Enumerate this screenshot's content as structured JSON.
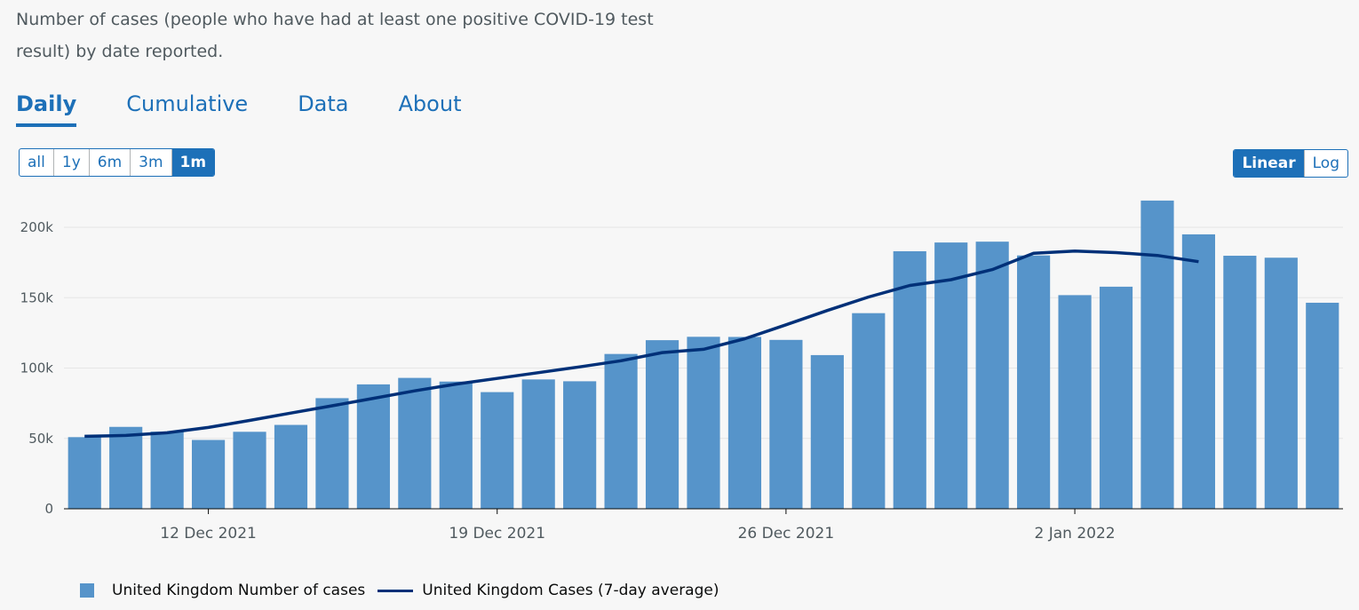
{
  "description": "Number of cases (people who have had at least one positive COVID-19 test result) by date reported.",
  "tabs": [
    {
      "label": "Daily",
      "active": true
    },
    {
      "label": "Cumulative",
      "active": false
    },
    {
      "label": "Data",
      "active": false
    },
    {
      "label": "About",
      "active": false
    }
  ],
  "range_buttons": [
    "all",
    "1y",
    "6m",
    "3m",
    "1m"
  ],
  "range_selected": "1m",
  "scale_buttons": [
    "Linear",
    "Log"
  ],
  "scale_selected": "Linear",
  "colors": {
    "bars": "#5694ca",
    "line": "#003078",
    "accent": "#1d70b8"
  },
  "legend": {
    "bars": "United Kingdom Number of cases",
    "line": "United Kingdom Cases (7-day average)"
  },
  "chart_data": {
    "type": "bar",
    "title": "",
    "xlabel": "",
    "ylabel": "",
    "ylim": [
      0,
      200000
    ],
    "yticks": [
      0,
      50000,
      100000,
      150000,
      200000
    ],
    "ytick_labels": [
      "0",
      "50k",
      "100k",
      "150k",
      "200k"
    ],
    "grid": true,
    "legend_position": "bottom-left",
    "categories": [
      "2021-12-09",
      "2021-12-10",
      "2021-12-11",
      "2021-12-12",
      "2021-12-13",
      "2021-12-14",
      "2021-12-15",
      "2021-12-16",
      "2021-12-17",
      "2021-12-18",
      "2021-12-19",
      "2021-12-20",
      "2021-12-21",
      "2021-12-22",
      "2021-12-23",
      "2021-12-24",
      "2021-12-25",
      "2021-12-26",
      "2021-12-27",
      "2021-12-28",
      "2021-12-29",
      "2021-12-30",
      "2021-12-31",
      "2022-01-01",
      "2022-01-02",
      "2022-01-03",
      "2022-01-04",
      "2022-01-05",
      "2022-01-06",
      "2022-01-07",
      "2022-01-08"
    ],
    "xtick_labels": [
      {
        "date": "2021-12-12",
        "label": "12 Dec 2021"
      },
      {
        "date": "2021-12-19",
        "label": "19 Dec 2021"
      },
      {
        "date": "2021-12-26",
        "label": "26 Dec 2021"
      },
      {
        "date": "2022-01-02",
        "label": "2 Jan 2022"
      }
    ],
    "series": [
      {
        "name": "United Kingdom Number of cases",
        "type": "bar",
        "values": [
          50900,
          58200,
          54800,
          48900,
          54700,
          59600,
          78600,
          88400,
          93000,
          90400,
          82900,
          91900,
          90600,
          110000,
          119800,
          122200,
          122100,
          120000,
          109200,
          139000,
          183000,
          189200,
          189800,
          180000,
          151800,
          157800,
          219000,
          195000,
          179800,
          178400,
          146400
        ]
      },
      {
        "name": "United Kingdom Cases (7-day average)",
        "type": "line",
        "values": [
          51500,
          52100,
          54000,
          57800,
          62800,
          68000,
          73200,
          78500,
          83800,
          88600,
          92600,
          96700,
          100800,
          105200,
          111000,
          113300,
          120800,
          130700,
          140900,
          150500,
          158700,
          162800,
          170000,
          181600,
          183100,
          182000,
          180000,
          175600,
          null,
          null,
          null
        ]
      }
    ]
  }
}
